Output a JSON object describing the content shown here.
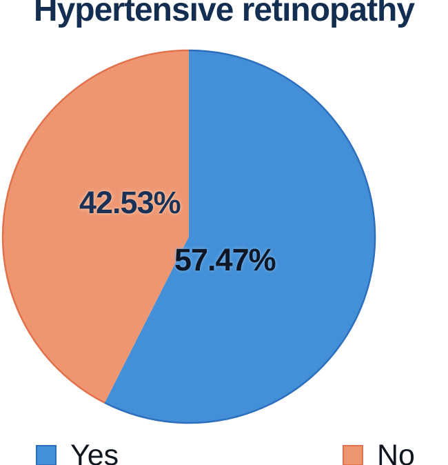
{
  "chart_data": {
    "type": "pie",
    "title": "Hypertensive retinopathy",
    "title_color": "#132e50",
    "categories": [
      "Yes",
      "No"
    ],
    "values": [
      57.47,
      42.53
    ],
    "labels": [
      "57.47%",
      "42.53%"
    ],
    "label_colors": [
      "#0e1726",
      "#1c3156"
    ],
    "colors": [
      "#4390d8",
      "#ee9672"
    ],
    "border_colors": [
      "#2d6fbd",
      "#e1714b"
    ],
    "start_angle_deg": 0,
    "direction": "clockwise",
    "legend_position": "bottom",
    "background": "#ffffff"
  },
  "legend": {
    "text_color": "#10161f",
    "items": [
      {
        "label": "Yes",
        "color": "#4390d8",
        "border": "#2d6fbd"
      },
      {
        "label": "No",
        "color": "#ee9672",
        "border": "#e1714b"
      }
    ]
  }
}
